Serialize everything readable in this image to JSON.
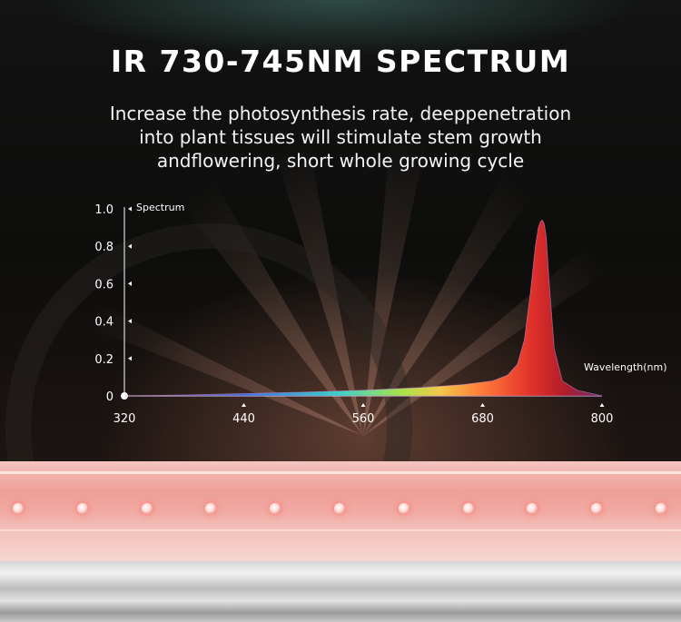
{
  "header": {
    "title": "IR 730-745NM SPECTRUM",
    "subtitle_lines": [
      "Increase the photosynthesis rate, deeppenetration",
      "into plant tissues will stimulate stem growth",
      "andflowering, short whole growing cycle"
    ]
  },
  "chart_data": {
    "type": "area",
    "title": "",
    "xlabel": "Wavelength(nm)",
    "ylabel": "Spectrum",
    "xlim": [
      320,
      800
    ],
    "ylim": [
      0,
      1.0
    ],
    "x_ticks": [
      320,
      440,
      560,
      680,
      800
    ],
    "y_ticks": [
      0,
      0.2,
      0.4,
      0.6,
      0.8,
      1.0
    ],
    "y_tick_labels": [
      "0",
      "0.2",
      "0.4",
      "0.6",
      "0.8",
      "1.0"
    ],
    "grid": false,
    "series": [
      {
        "x": [
          320,
          380,
          440,
          500,
          560,
          620,
          660,
          690,
          705,
          715,
          722,
          728,
          733,
          736,
          738,
          740,
          742,
          744,
          747,
          752,
          760,
          775,
          800
        ],
        "y": [
          0,
          0.005,
          0.012,
          0.02,
          0.03,
          0.045,
          0.06,
          0.08,
          0.11,
          0.17,
          0.3,
          0.55,
          0.8,
          0.9,
          0.93,
          0.94,
          0.92,
          0.85,
          0.6,
          0.25,
          0.08,
          0.03,
          0
        ]
      }
    ]
  },
  "product": {
    "led_count": 11,
    "led_color": "#ff8a80"
  },
  "colors": {
    "peak_red": "#e2322a",
    "background": "#0c0b0a"
  }
}
